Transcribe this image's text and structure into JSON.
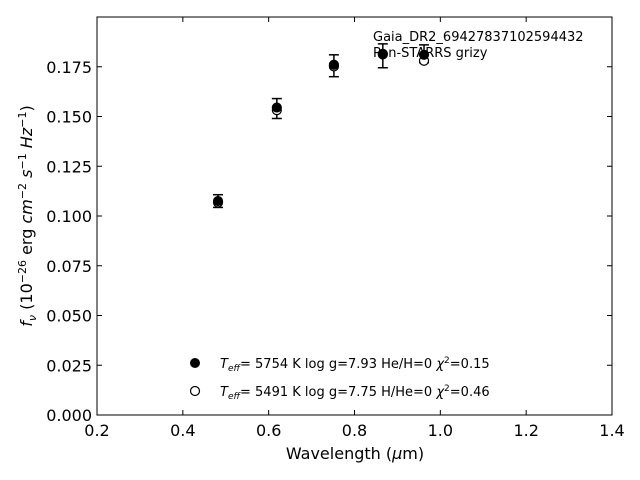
{
  "chart_data": {
    "type": "scatter",
    "title": "",
    "xlabel": "Wavelength (μm)",
    "ylabel": "f_ν (10^-26 erg cm^-2 s^-1 Hz^-1)",
    "xlim": [
      0.2,
      1.4
    ],
    "ylim": [
      0.0,
      0.2
    ],
    "xticks": [
      0.2,
      0.4,
      0.6,
      0.8,
      1.0,
      1.2,
      1.4
    ],
    "xtick_labels": [
      "0.2",
      "0.4",
      "0.6",
      "0.8",
      "1.0",
      "1.2",
      "1.4"
    ],
    "yticks": [
      0.0,
      0.025,
      0.05,
      0.075,
      0.1,
      0.125,
      0.15,
      0.175
    ],
    "ytick_labels": [
      "0.000",
      "0.025",
      "0.050",
      "0.075",
      "0.100",
      "0.125",
      "0.150",
      "0.175"
    ],
    "grid": false,
    "annotations": [
      "Gaia_DR2_69427837102594432",
      "Pan-STARRS grizy"
    ],
    "observed": {
      "x": [
        0.482,
        0.619,
        0.752,
        0.866,
        0.962
      ],
      "y": [
        0.1075,
        0.154,
        0.1755,
        0.1805,
        0.1815
      ],
      "yerr": [
        0.0032,
        0.005,
        0.0055,
        0.006,
        0.0045
      ]
    },
    "series": [
      {
        "marker": "filled",
        "x": [
          0.482,
          0.619,
          0.752,
          0.866,
          0.962
        ],
        "y": [
          0.1075,
          0.1545,
          0.176,
          0.1815,
          0.181
        ],
        "legend": {
          "teff": "5754 K",
          "logg": "log g=7.93",
          "comp": "He/H=0",
          "chi2": "=0.15"
        }
      },
      {
        "marker": "open",
        "x": [
          0.482,
          0.619,
          0.752,
          0.866,
          0.962
        ],
        "y": [
          0.1068,
          0.1532,
          0.1752,
          0.1812,
          0.178
        ],
        "legend": {
          "teff": "5491 K",
          "logg": "log g=7.75",
          "comp": "H/He=0",
          "chi2": "=0.46"
        }
      }
    ],
    "legend_placement": "lower-center"
  }
}
